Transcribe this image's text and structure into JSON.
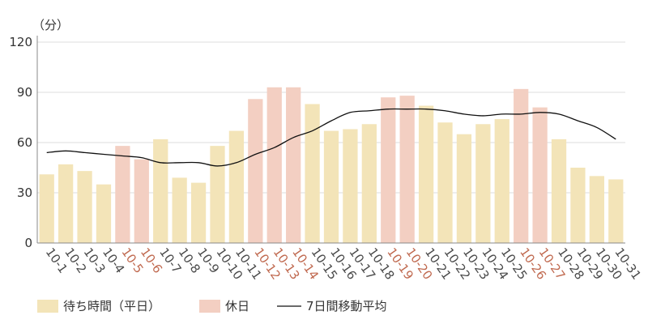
{
  "chart_data": {
    "type": "bar",
    "ylabel": "（分）",
    "ylim": [
      0,
      120
    ],
    "yticks": [
      0,
      30,
      60,
      90,
      120
    ],
    "grid": true,
    "legend_placement": "bottom-left",
    "categories": [
      "10-1",
      "10-2",
      "10-3",
      "10-4",
      "10-5",
      "10-6",
      "10-7",
      "10-8",
      "10-9",
      "10-10",
      "10-11",
      "10-12",
      "10-13",
      "10-14",
      "10-15",
      "10-16",
      "10-17",
      "10-18",
      "10-19",
      "10-20",
      "10-21",
      "10-22",
      "10-23",
      "10-24",
      "10-25",
      "10-26",
      "10-27",
      "10-28",
      "10-29",
      "10-30",
      "10-31"
    ],
    "values": [
      41,
      47,
      43,
      35,
      58,
      50,
      62,
      39,
      36,
      58,
      67,
      86,
      93,
      93,
      83,
      67,
      68,
      71,
      87,
      88,
      82,
      72,
      65,
      71,
      74,
      92,
      81,
      62,
      45,
      40,
      38
    ],
    "holiday": [
      false,
      false,
      false,
      false,
      true,
      true,
      false,
      false,
      false,
      false,
      false,
      true,
      true,
      true,
      false,
      false,
      false,
      false,
      true,
      true,
      false,
      false,
      false,
      false,
      false,
      true,
      true,
      false,
      false,
      false,
      false
    ],
    "series": [
      {
        "name": "待ち時間（平日）",
        "color": "#f3e4b8"
      },
      {
        "name": "休日",
        "color": "#f3cfc2"
      },
      {
        "name": "7日間移動平均",
        "color": "#111111",
        "values": [
          54,
          55,
          54,
          53,
          52,
          51,
          48,
          48,
          48,
          46,
          48,
          53,
          57,
          63,
          67,
          73,
          78,
          79,
          80,
          80,
          80,
          79,
          77,
          76,
          77,
          77,
          78,
          77,
          73,
          69,
          62
        ]
      }
    ],
    "colors": {
      "weekday_label": "#4a4a4a",
      "holiday_label": "#c0694f",
      "grid": "#dddddd",
      "axis": "#888888"
    }
  }
}
